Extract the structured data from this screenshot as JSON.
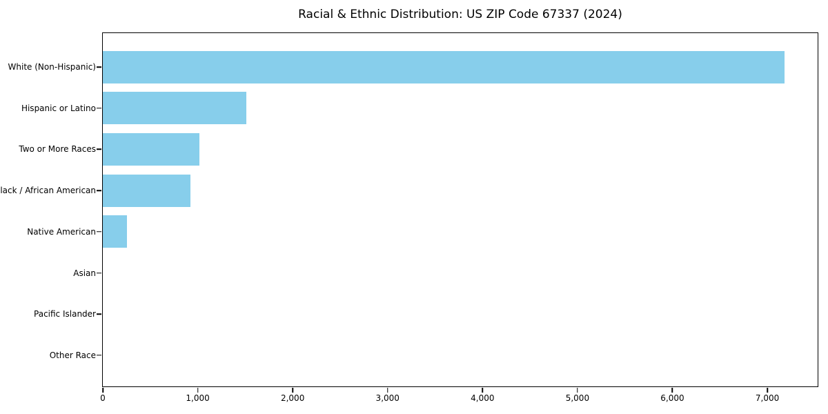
{
  "chart_data": {
    "type": "bar",
    "orientation": "horizontal",
    "title": "Racial & Ethnic Distribution: US ZIP Code 67337 (2024)",
    "categories": [
      "White (Non-Hispanic)",
      "Hispanic or Latino",
      "Two or More Races",
      "Black / African American",
      "Native American",
      "Asian",
      "Pacific Islander",
      "Other Race"
    ],
    "values": [
      7180,
      1515,
      1015,
      920,
      255,
      0,
      0,
      0
    ],
    "xlabel": "",
    "ylabel": "",
    "xlim": [
      0,
      7530
    ],
    "xticks": [
      0,
      1000,
      2000,
      3000,
      4000,
      5000,
      6000,
      7000
    ],
    "xtick_labels": [
      "0",
      "1,000",
      "2,000",
      "3,000",
      "4,000",
      "5,000",
      "6,000",
      "7,000"
    ],
    "bar_color": "#87CEEB",
    "grid": false,
    "legend_position": "none"
  }
}
